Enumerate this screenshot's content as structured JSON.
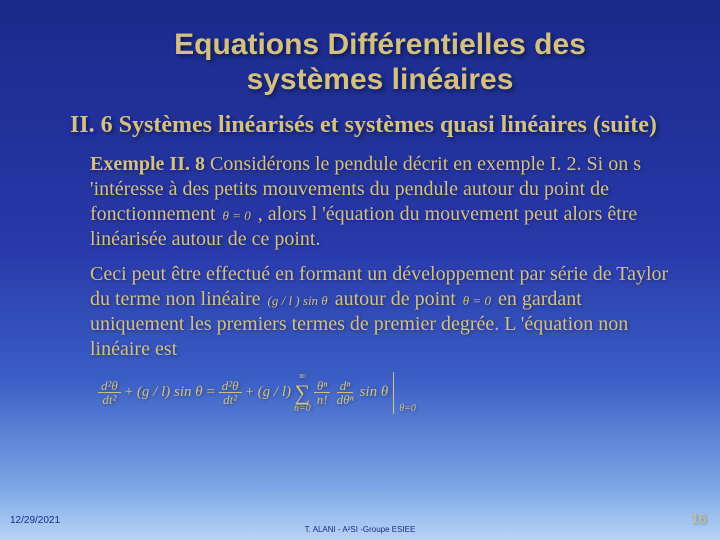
{
  "title_line1": "Equations Différentielles des",
  "title_line2": "systèmes linéaires",
  "subheading": "II. 6 Systèmes linéarisés et systèmes quasi linéaires (suite)",
  "para1_lead": "Exemple II. 8",
  "para1_rest": " Considérons le pendule décrit en exemple I. 2. Si on s 'intéresse à des petits mouvements du pendule autour du point de fonctionnement ",
  "para1_math": "θ = 0",
  "para1_tail": " , alors l 'équation du mouvement peut alors être linéarisée autour de ce point.",
  "para2_a": "Ceci peut être effectué en formant un développement par série de Taylor du terme non linéaire ",
  "para2_math1": "(g / l ) sin θ",
  "para2_b": "  autour de point ",
  "para2_math2": "θ = 0",
  "para2_c": "   en gardant uniquement les premiers termes de premier degrée. L 'équation non linéaire est",
  "eq": {
    "lhs1_num": "d²θ",
    "lhs1_den": "dt²",
    "plus": "+",
    "lhs2": "(g / l) sin θ",
    "equals": "=",
    "rhs1_num": "d²θ",
    "rhs1_den": "dt²",
    "rhs2": "(g / l)",
    "sum_top": "∞",
    "sum_bot": "n=0",
    "frac_num": "θⁿ",
    "frac_den": "n!",
    "deriv_num": "dⁿ",
    "deriv_den": "dθⁿ",
    "sin": "sin θ",
    "bracket_sub": "θ=0"
  },
  "footer": {
    "date": "12/29/2021",
    "center": "T. ALANI - A²SI -Groupe ESIEE",
    "page": "16"
  },
  "colors": {
    "text": "#d4c080",
    "bg_top": "#1a2a8a",
    "bg_bottom": "#b8d4f5"
  }
}
